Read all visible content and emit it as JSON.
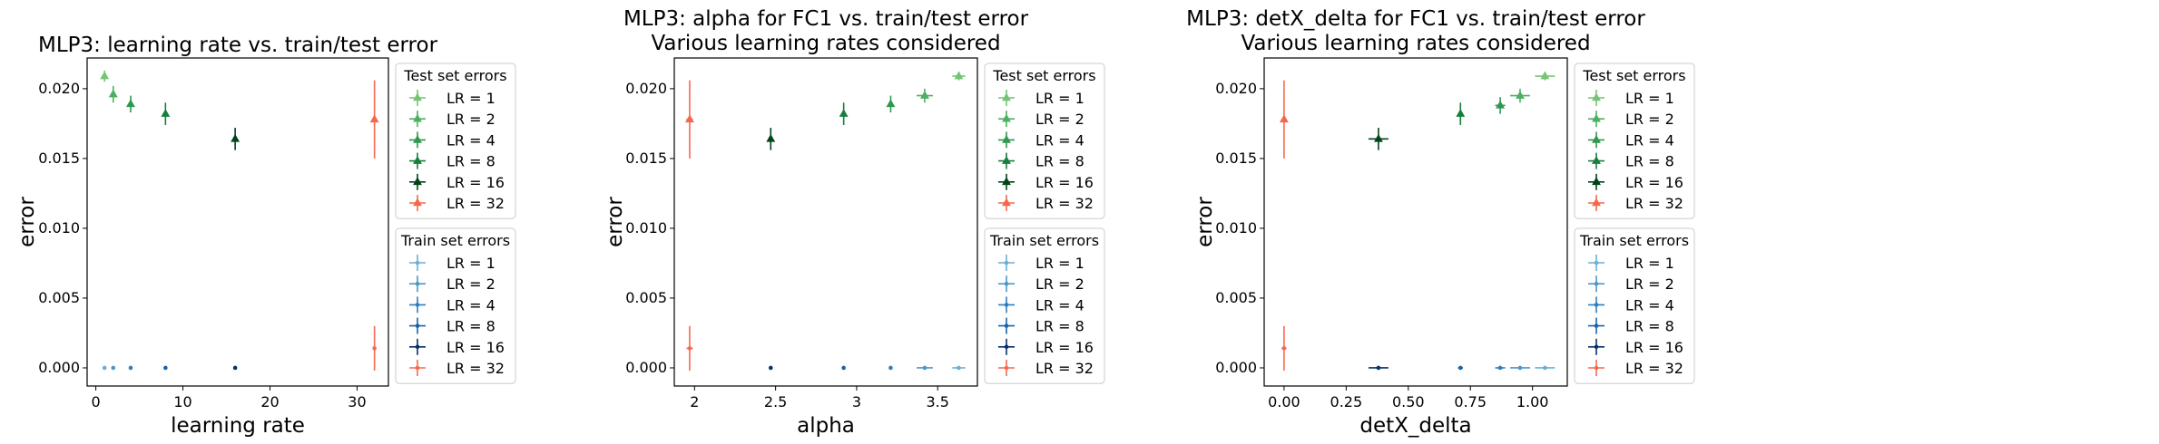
{
  "chart_data": [
    {
      "type": "scatter",
      "title": "MLP3: learning rate vs. train/test error",
      "xlabel": "learning rate",
      "ylabel": "error",
      "xlim": [
        -1,
        33.6
      ],
      "ylim": [
        -0.0013,
        0.0222
      ],
      "xticks": [
        0,
        10,
        20,
        30
      ],
      "yticks": [
        0.0,
        0.005,
        0.01,
        0.015,
        0.02
      ],
      "ytick_labels": [
        "0.000",
        "0.005",
        "0.010",
        "0.015",
        "0.020"
      ],
      "legends": [
        {
          "title": "Test set errors",
          "entries": [
            "LR = 1",
            "LR = 2",
            "LR = 4",
            "LR = 8",
            "LR = 16",
            "LR = 32"
          ]
        },
        {
          "title": "Train set errors",
          "entries": [
            "LR = 1",
            "LR = 2",
            "LR = 4",
            "LR = 8",
            "LR = 16",
            "LR = 32"
          ]
        }
      ],
      "test_points": [
        {
          "x": 1,
          "y": 0.0209,
          "xerr": 0,
          "yerr": 0.0004
        },
        {
          "x": 2,
          "y": 0.0196,
          "xerr": 0,
          "yerr": 0.0006
        },
        {
          "x": 4,
          "y": 0.0189,
          "xerr": 0,
          "yerr": 0.0006
        },
        {
          "x": 8,
          "y": 0.0182,
          "xerr": 0,
          "yerr": 0.0008
        },
        {
          "x": 16,
          "y": 0.0164,
          "xerr": 0,
          "yerr": 0.0008
        },
        {
          "x": 32,
          "y": 0.0178,
          "xerr": 0,
          "yerr": 0.0028
        }
      ],
      "train_points": [
        {
          "x": 1,
          "y": 0.0,
          "xerr": 0,
          "yerr": 0.0001
        },
        {
          "x": 2,
          "y": 0.0,
          "xerr": 0,
          "yerr": 0.0001
        },
        {
          "x": 4,
          "y": 0.0,
          "xerr": 0,
          "yerr": 0.0001
        },
        {
          "x": 8,
          "y": 0.0,
          "xerr": 0,
          "yerr": 0.0001
        },
        {
          "x": 16,
          "y": 0.0,
          "xerr": 0,
          "yerr": 0.0001
        },
        {
          "x": 32,
          "y": 0.0014,
          "xerr": 0,
          "yerr": 0.0016
        }
      ]
    },
    {
      "type": "scatter",
      "title": "MLP3: alpha for FC1 vs. train/test error",
      "subtitle": "Various learning rates considered",
      "xlabel": "alpha",
      "ylabel": "error",
      "xlim": [
        1.875,
        3.745
      ],
      "ylim": [
        -0.0013,
        0.0222
      ],
      "xticks": [
        2.0,
        2.5,
        3.0,
        3.5
      ],
      "yticks": [
        0.0,
        0.005,
        0.01,
        0.015,
        0.02
      ],
      "ytick_labels": [
        "0.000",
        "0.005",
        "0.010",
        "0.015",
        "0.020"
      ],
      "legends": [
        {
          "title": "Test set errors",
          "entries": [
            "LR = 1",
            "LR = 2",
            "LR = 4",
            "LR = 8",
            "LR = 16",
            "LR = 32"
          ]
        },
        {
          "title": "Train set errors",
          "entries": [
            "LR = 1",
            "LR = 2",
            "LR = 4",
            "LR = 8",
            "LR = 16",
            "LR = 32"
          ]
        }
      ],
      "test_points": [
        {
          "x": 3.63,
          "y": 0.0209,
          "xerr": 0.04,
          "yerr": 0.0003
        },
        {
          "x": 3.42,
          "y": 0.0195,
          "xerr": 0.05,
          "yerr": 0.0005
        },
        {
          "x": 3.21,
          "y": 0.0189,
          "xerr": 0.01,
          "yerr": 0.0006
        },
        {
          "x": 2.92,
          "y": 0.0182,
          "xerr": 0.01,
          "yerr": 0.0008
        },
        {
          "x": 2.47,
          "y": 0.0164,
          "xerr": 0.01,
          "yerr": 0.0008
        },
        {
          "x": 1.97,
          "y": 0.0178,
          "xerr": 0.02,
          "yerr": 0.0028
        }
      ],
      "train_points": [
        {
          "x": 3.63,
          "y": 0.0,
          "xerr": 0.04,
          "yerr": 0.0001
        },
        {
          "x": 3.42,
          "y": 0.0,
          "xerr": 0.05,
          "yerr": 0.0001
        },
        {
          "x": 3.21,
          "y": 0.0,
          "xerr": 0.01,
          "yerr": 0.0001
        },
        {
          "x": 2.92,
          "y": 0.0,
          "xerr": 0.01,
          "yerr": 0.0001
        },
        {
          "x": 2.47,
          "y": 0.0,
          "xerr": 0.01,
          "yerr": 0.0001
        },
        {
          "x": 1.97,
          "y": 0.0014,
          "xerr": 0.02,
          "yerr": 0.0016
        }
      ]
    },
    {
      "type": "scatter",
      "title": "MLP3: detX_delta for FC1 vs. train/test error",
      "subtitle": "Various learning rates considered",
      "xlabel": "detX_delta",
      "ylabel": "error",
      "xlim": [
        -0.08,
        1.14
      ],
      "ylim": [
        -0.0013,
        0.0222
      ],
      "xticks": [
        0.0,
        0.25,
        0.5,
        0.75,
        1.0
      ],
      "xtick_labels": [
        "0.00",
        "0.25",
        "0.50",
        "0.75",
        "1.00"
      ],
      "yticks": [
        0.0,
        0.005,
        0.01,
        0.015,
        0.02
      ],
      "ytick_labels": [
        "0.000",
        "0.005",
        "0.010",
        "0.015",
        "0.020"
      ],
      "legends": [
        {
          "title": "Test set errors",
          "entries": [
            "LR = 1",
            "LR = 2",
            "LR = 4",
            "LR = 8",
            "LR = 16",
            "LR = 32"
          ]
        },
        {
          "title": "Train set errors",
          "entries": [
            "LR = 1",
            "LR = 2",
            "LR = 4",
            "LR = 8",
            "LR = 16",
            "LR = 32"
          ]
        }
      ],
      "test_points": [
        {
          "x": 1.05,
          "y": 0.0209,
          "xerr": 0.04,
          "yerr": 0.0003
        },
        {
          "x": 0.95,
          "y": 0.0195,
          "xerr": 0.04,
          "yerr": 0.0005
        },
        {
          "x": 0.87,
          "y": 0.0188,
          "xerr": 0.02,
          "yerr": 0.0006
        },
        {
          "x": 0.71,
          "y": 0.0182,
          "xerr": 0.01,
          "yerr": 0.0008
        },
        {
          "x": 0.38,
          "y": 0.0164,
          "xerr": 0.04,
          "yerr": 0.0008
        },
        {
          "x": 0.0,
          "y": 0.0178,
          "xerr": 0.01,
          "yerr": 0.0028
        }
      ],
      "train_points": [
        {
          "x": 1.05,
          "y": 0.0,
          "xerr": 0.04,
          "yerr": 0.0001
        },
        {
          "x": 0.95,
          "y": 0.0,
          "xerr": 0.04,
          "yerr": 0.0001
        },
        {
          "x": 0.87,
          "y": 0.0,
          "xerr": 0.02,
          "yerr": 0.0001
        },
        {
          "x": 0.71,
          "y": 0.0,
          "xerr": 0.01,
          "yerr": 0.0001
        },
        {
          "x": 0.38,
          "y": 0.0,
          "xerr": 0.04,
          "yerr": 0.0001
        },
        {
          "x": 0.0,
          "y": 0.0014,
          "xerr": 0.01,
          "yerr": 0.0016
        }
      ]
    }
  ],
  "colors": {
    "test": [
      "#74c476",
      "#4daf62",
      "#2f984f",
      "#157f3b",
      "#00441b",
      "#f4694e"
    ],
    "train": [
      "#6baed6",
      "#4a98c9",
      "#2e7ebc",
      "#1764ab",
      "#08306b",
      "#f4694e"
    ],
    "axis": "#000000",
    "legend_border": "#cccccc"
  },
  "markers": {
    "test": "triangle",
    "train": "dot"
  }
}
